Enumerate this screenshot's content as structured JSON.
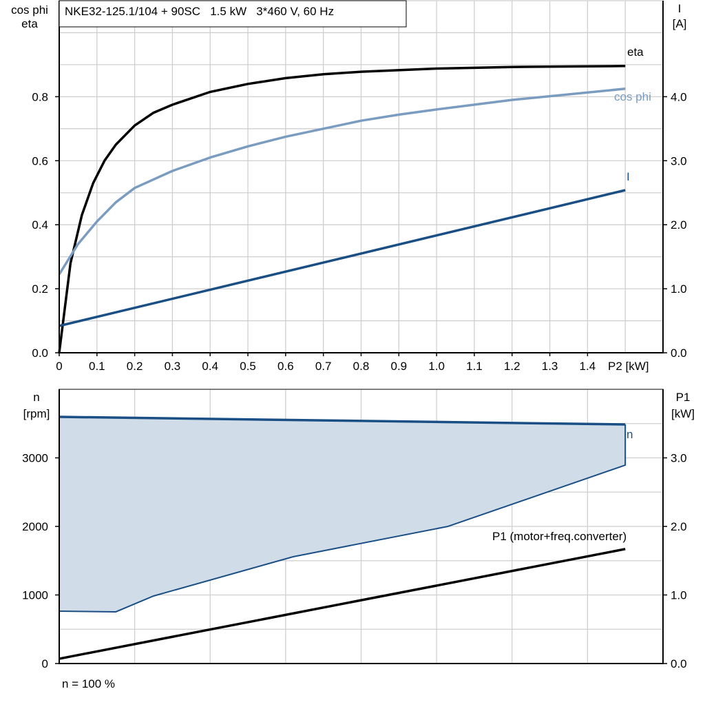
{
  "chart_data": [
    {
      "type": "line",
      "title": "NKE32-125.1/104 + 90SC   1.5 kW   3*460 V, 60 Hz",
      "xlabel": "P2 [kW]",
      "ylabel_left": [
        "cos phi",
        "eta"
      ],
      "ylabel_right": [
        "I",
        "[A]"
      ],
      "xlim": [
        0,
        1.6
      ],
      "ylim_left": [
        0,
        1.1
      ],
      "ylim_right": [
        0,
        5.5
      ],
      "x_ticks": [
        "0",
        "0.1",
        "0.2",
        "0.3",
        "0.4",
        "0.5",
        "0.6",
        "0.7",
        "0.8",
        "0.9",
        "1.0",
        "1.1",
        "1.2",
        "1.3",
        "1.4"
      ],
      "y_ticks_left": [
        "0.0",
        "0.2",
        "0.4",
        "0.6",
        "0.8"
      ],
      "y_ticks_right": [
        "0.0",
        "1.0",
        "2.0",
        "3.0",
        "4.0"
      ],
      "grid": true,
      "series": [
        {
          "name": "eta",
          "axis": "left",
          "color": "#000000",
          "x": [
            0,
            0.03,
            0.06,
            0.09,
            0.12,
            0.15,
            0.2,
            0.25,
            0.3,
            0.4,
            0.5,
            0.6,
            0.7,
            0.8,
            1.0,
            1.2,
            1.5
          ],
          "y": [
            0,
            0.28,
            0.43,
            0.53,
            0.6,
            0.65,
            0.71,
            0.75,
            0.775,
            0.815,
            0.84,
            0.858,
            0.87,
            0.878,
            0.888,
            0.893,
            0.896
          ]
        },
        {
          "name": "cos phi",
          "axis": "left",
          "color": "#7a9cc0",
          "x": [
            0,
            0.05,
            0.1,
            0.15,
            0.2,
            0.3,
            0.4,
            0.5,
            0.6,
            0.7,
            0.8,
            0.9,
            1.0,
            1.2,
            1.5
          ],
          "y": [
            0.245,
            0.34,
            0.41,
            0.47,
            0.515,
            0.568,
            0.61,
            0.645,
            0.675,
            0.7,
            0.725,
            0.744,
            0.76,
            0.79,
            0.825
          ]
        },
        {
          "name": "I",
          "axis": "right",
          "color": "#1a4f85",
          "x": [
            0,
            1.5
          ],
          "y": [
            0.42,
            2.54
          ]
        }
      ]
    },
    {
      "type": "area",
      "footnote": "n = 100 %",
      "xlim": [
        0,
        1.6
      ],
      "ylabel_left": [
        "n",
        "[rpm]"
      ],
      "ylabel_right": [
        "P1",
        "[kW]"
      ],
      "ylim_left": [
        0,
        4000
      ],
      "ylim_right": [
        0,
        4.0
      ],
      "y_ticks_left": [
        "0",
        "1000",
        "2000",
        "3000"
      ],
      "y_ticks_right": [
        "0.0",
        "1.0",
        "2.0",
        "3.0"
      ],
      "grid": true,
      "fill_color": "#d0dce8",
      "series": [
        {
          "name": "n",
          "axis": "left",
          "color": "#1a4f85",
          "upper": {
            "x": [
              0,
              1.5
            ],
            "y": [
              3598,
              3487
            ]
          },
          "lower": {
            "x": [
              0,
              0.15,
              0.25,
              0.62,
              1.03,
              1.5
            ],
            "y": [
              764,
              754,
              985,
              1558,
              2000,
              2894
            ]
          }
        },
        {
          "name": "P1 (motor+freq.converter)",
          "axis": "right",
          "color": "#000000",
          "x": [
            0,
            1.5
          ],
          "y": [
            0.07,
            1.67
          ]
        }
      ]
    }
  ]
}
